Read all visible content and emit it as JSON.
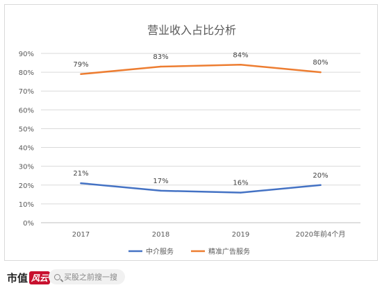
{
  "chart_data": {
    "type": "line",
    "title": "营业收入占比分析",
    "categories": [
      "2017",
      "2018",
      "2019",
      "2020年前4个月"
    ],
    "ylim": [
      0,
      90
    ],
    "yticks": [
      "0%",
      "10%",
      "20%",
      "30%",
      "40%",
      "50%",
      "60%",
      "70%",
      "80%",
      "90%"
    ],
    "grid": true,
    "legend_position": "bottom",
    "series": [
      {
        "name": "中介服务",
        "values": [
          21,
          17,
          16,
          20
        ],
        "labels": [
          "21%",
          "17%",
          "16%",
          "20%"
        ],
        "color": "#4472c4"
      },
      {
        "name": "精准广告服务",
        "values": [
          79,
          83,
          84,
          80
        ],
        "labels": [
          "79%",
          "83%",
          "84%",
          "80%"
        ],
        "color": "#ed7d31"
      }
    ]
  },
  "footer": {
    "brand": "市值",
    "brand_seal": "风云",
    "search_placeholder": "买股之前搜一搜"
  }
}
